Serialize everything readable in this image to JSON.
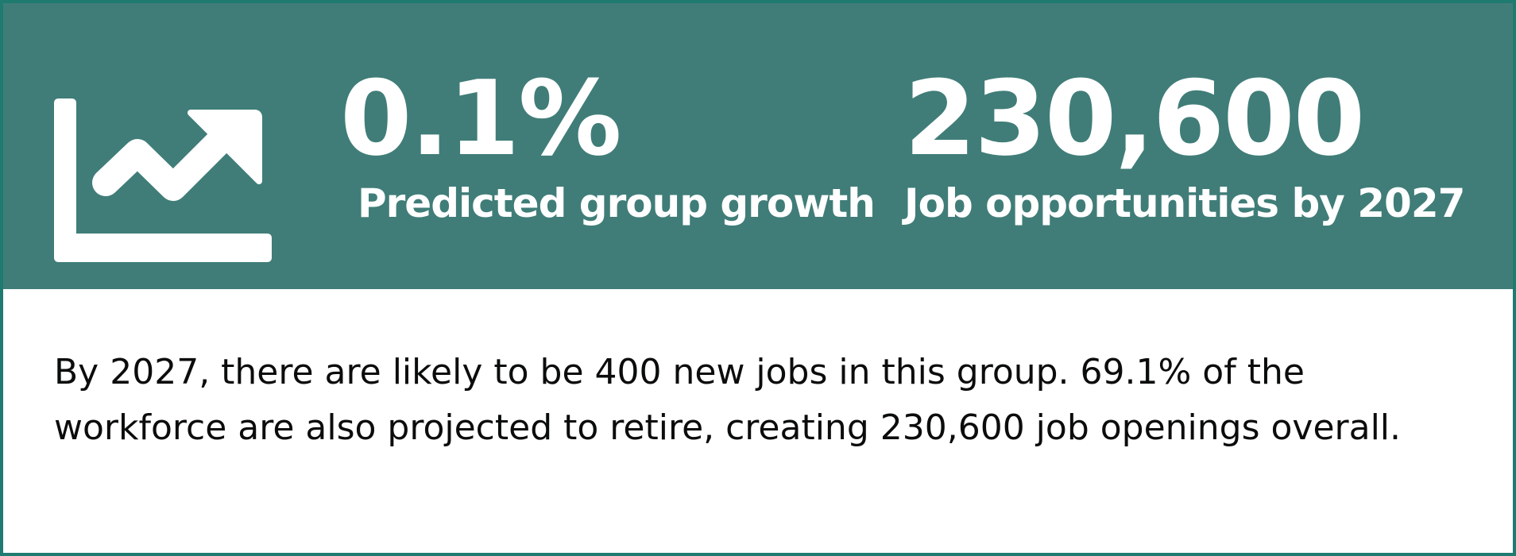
{
  "banner": {
    "icon": "trending-up-chart-icon",
    "background_color": "#407d78",
    "border_color": "#1f7a70",
    "stats": [
      {
        "value": "0.1%",
        "label": "Predicted group growth"
      },
      {
        "value": "230,600",
        "label": "Job opportunities by 2027"
      }
    ]
  },
  "description": "By 2027, there are likely to be 400 new jobs in this group. 69.1% of the workforce are also projected to retire, creating 230,600 job openings overall."
}
